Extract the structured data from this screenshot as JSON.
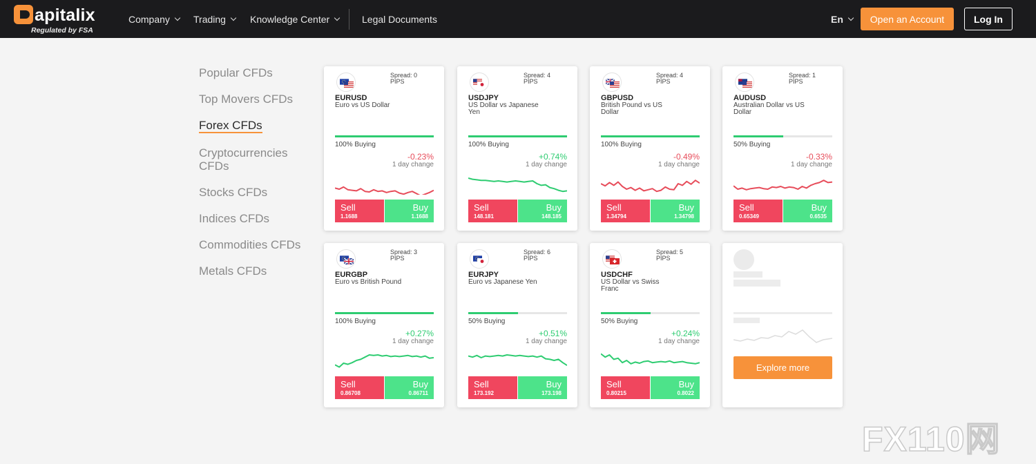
{
  "header": {
    "brand": "apitalix",
    "brand_sub": "Regulated by FSA",
    "nav": [
      "Company",
      "Trading",
      "Knowledge Center"
    ],
    "legal": "Legal Documents",
    "lang": "En",
    "open_account": "Open an Account",
    "login": "Log In"
  },
  "sidebar": {
    "items": [
      "Popular CFDs",
      "Top Movers CFDs",
      "Forex CFDs",
      "Cryptocurrencies CFDs",
      "Stocks CFDs",
      "Indices CFDs",
      "Commodities CFDs",
      "Metals CFDs"
    ],
    "active": "Forex CFDs"
  },
  "labels": {
    "pips": "PIPS",
    "one_day": "1 day change",
    "sell": "Sell",
    "buy": "Buy",
    "explore": "Explore more"
  },
  "cards": [
    {
      "symbol": "EURUSD",
      "desc": "Euro vs US Dollar",
      "spread": "Spread: 0",
      "buying": "100% Buying",
      "buying_pct": 100,
      "change": "-0.23%",
      "dir": "neg",
      "sell": "1.1688",
      "buy": "1.1688",
      "flags": [
        "eu",
        "us"
      ],
      "spark": [
        38,
        40,
        36,
        41,
        42,
        43,
        39,
        44,
        45,
        41,
        44,
        43,
        46,
        44,
        43,
        47,
        49,
        46,
        44,
        48,
        52,
        49,
        46,
        42
      ]
    },
    {
      "symbol": "USDJPY",
      "desc": "US Dollar vs Japanese Yen",
      "spread": "Spread: 4",
      "buying": "100% Buying",
      "buying_pct": 100,
      "change": "+0.74%",
      "dir": "pos",
      "sell": "148.181",
      "buy": "148.185",
      "flags": [
        "us",
        "jp"
      ],
      "spark": [
        20,
        22,
        23,
        24,
        24,
        25,
        26,
        25,
        26,
        27,
        26,
        25,
        26,
        27,
        26,
        25,
        30,
        33,
        32,
        37,
        39,
        42,
        44,
        43
      ]
    },
    {
      "symbol": "GBPUSD",
      "desc": "British Pound vs US Dollar",
      "spread": "Spread: 4",
      "buying": "100% Buying",
      "buying_pct": 100,
      "change": "-0.49%",
      "dir": "neg",
      "sell": "1.34794",
      "buy": "1.34798",
      "flags": [
        "gb",
        "us"
      ],
      "spark": [
        30,
        34,
        28,
        33,
        27,
        35,
        40,
        37,
        42,
        38,
        43,
        41,
        39,
        44,
        42,
        36,
        40,
        41,
        30,
        33,
        26,
        31,
        24,
        29
      ]
    },
    {
      "symbol": "AUDUSD",
      "desc": "Australian Dollar vs US Dollar",
      "spread": "Spread: 1",
      "buying": "50% Buying",
      "buying_pct": 50,
      "change": "-0.33%",
      "dir": "neg",
      "sell": "0.65349",
      "buy": "0.6535",
      "flags": [
        "au",
        "us"
      ],
      "spark": [
        34,
        40,
        38,
        41,
        39,
        38,
        37,
        39,
        40,
        36,
        37,
        35,
        38,
        36,
        37,
        40,
        35,
        38,
        33,
        30,
        28,
        24,
        28,
        27
      ]
    },
    {
      "symbol": "EURGBP",
      "desc": "Euro vs British Pound",
      "spread": "Spread: 3",
      "buying": "100% Buying",
      "buying_pct": 100,
      "change": "+0.27%",
      "dir": "pos",
      "sell": "0.86708",
      "buy": "0.86711",
      "flags": [
        "eu",
        "gb"
      ],
      "spark": [
        38,
        42,
        35,
        37,
        34,
        30,
        28,
        24,
        20,
        21,
        20,
        22,
        21,
        23,
        22,
        23,
        22,
        21,
        23,
        22,
        24,
        22,
        26,
        25
      ]
    },
    {
      "symbol": "EURJPY",
      "desc": "Euro vs Japanese Yen",
      "spread": "Spread: 6",
      "buying": "50% Buying",
      "buying_pct": 50,
      "change": "+0.51%",
      "dir": "pos",
      "sell": "173.192",
      "buy": "173.198",
      "flags": [
        "eu",
        "jp"
      ],
      "spark": [
        22,
        24,
        21,
        25,
        22,
        23,
        22,
        21,
        22,
        20,
        21,
        22,
        21,
        22,
        23,
        22,
        24,
        22,
        27,
        28,
        30,
        28,
        34,
        39
      ]
    },
    {
      "symbol": "USDCHF",
      "desc": "US Dollar vs Swiss Franc",
      "spread": "Spread: 5",
      "buying": "50% Buying",
      "buying_pct": 50,
      "change": "+0.24%",
      "dir": "pos",
      "sell": "0.80215",
      "buy": "0.8022",
      "flags": [
        "us",
        "ch"
      ],
      "spark": [
        18,
        24,
        20,
        28,
        26,
        34,
        30,
        36,
        33,
        35,
        32,
        31,
        34,
        33,
        32,
        33,
        31,
        34,
        33,
        32,
        34,
        35,
        36,
        34
      ]
    }
  ],
  "colors": {
    "accent": "#f7923a",
    "sell": "#f0465e",
    "buy": "#4de38a",
    "up": "#2ecc71",
    "down": "#e74c5a"
  },
  "watermark": "FX110网"
}
